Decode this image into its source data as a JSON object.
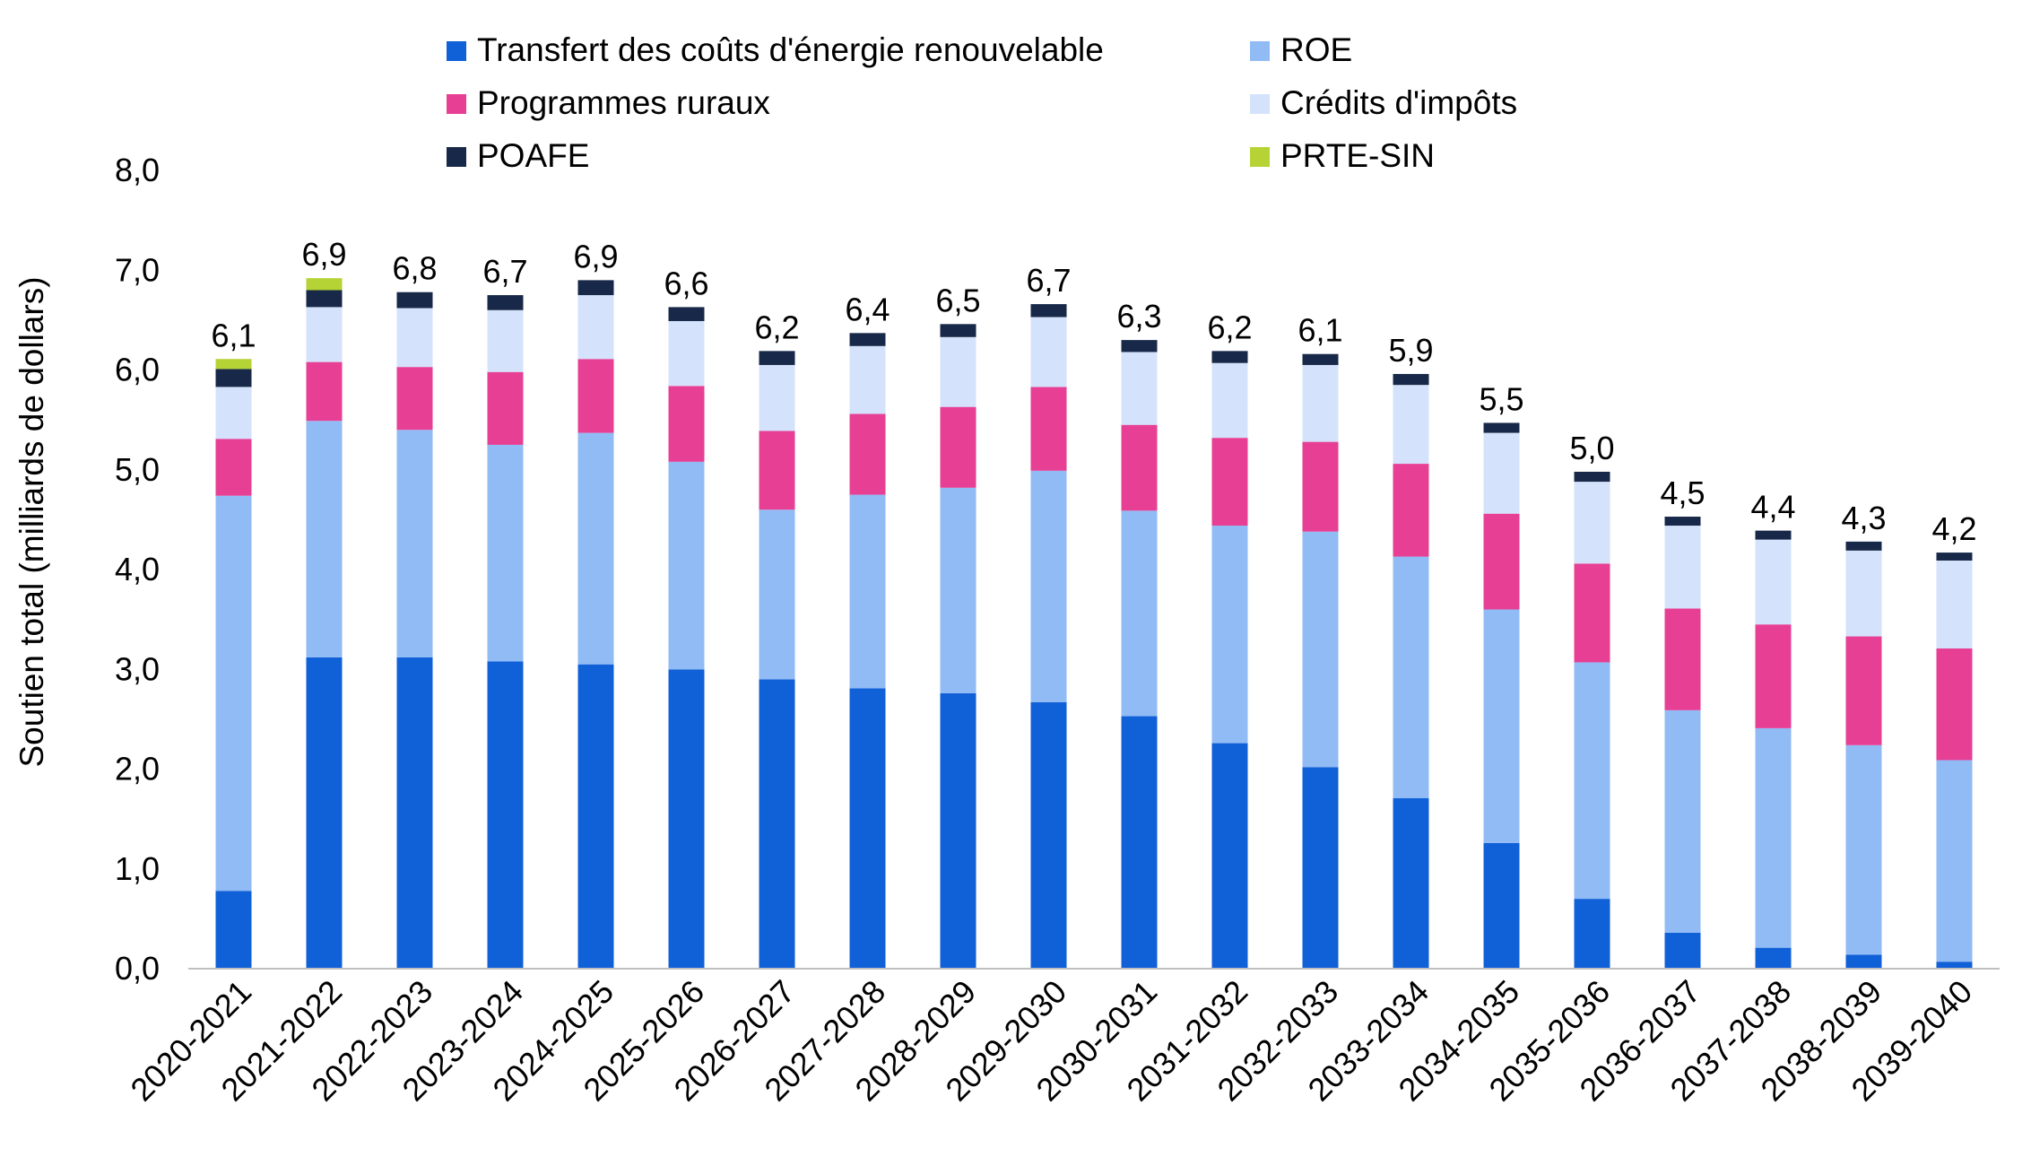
{
  "chart_data": {
    "type": "bar",
    "stacked": true,
    "ylabel": "Soutien total (milliards de dollars)",
    "ylim": [
      0,
      8
    ],
    "yticks": [
      0,
      1,
      2,
      3,
      4,
      5,
      6,
      7,
      8
    ],
    "ytick_labels": [
      "0,0",
      "1,0",
      "2,0",
      "3,0",
      "4,0",
      "5,0",
      "6,0",
      "7,0",
      "8,0"
    ],
    "grid": false,
    "legend_position": "top",
    "categories": [
      "2020-2021",
      "2021-2022",
      "2022-2023",
      "2023-2024",
      "2024-2025",
      "2025-2026",
      "2026-2027",
      "2027-2028",
      "2028-2029",
      "2029-2030",
      "2030-2031",
      "2031-2032",
      "2032-2033",
      "2033-2034",
      "2034-2035",
      "2035-2036",
      "2036-2037",
      "2037-2038",
      "2038-2039",
      "2039-2040"
    ],
    "series": [
      {
        "name": "Transfert des coûts d'énergie renouvelable",
        "color": "#1060d8",
        "values": [
          0.78,
          3.12,
          3.12,
          3.08,
          3.05,
          3.0,
          2.9,
          2.81,
          2.76,
          2.67,
          2.53,
          2.26,
          2.02,
          1.71,
          1.26,
          0.7,
          0.36,
          0.21,
          0.14,
          0.07
        ]
      },
      {
        "name": "ROE",
        "color": "#91bbf5",
        "values": [
          3.96,
          2.37,
          2.28,
          2.17,
          2.32,
          2.08,
          1.7,
          1.94,
          2.06,
          2.32,
          2.06,
          2.18,
          2.36,
          2.42,
          2.34,
          2.37,
          2.23,
          2.2,
          2.1,
          2.02
        ]
      },
      {
        "name": "Programmes ruraux",
        "color": "#e63f94",
        "values": [
          0.57,
          0.59,
          0.63,
          0.73,
          0.74,
          0.76,
          0.79,
          0.81,
          0.81,
          0.84,
          0.86,
          0.88,
          0.9,
          0.93,
          0.96,
          0.99,
          1.02,
          1.04,
          1.09,
          1.12
        ]
      },
      {
        "name": "Crédits d'impôts",
        "color": "#d4e3fb",
        "values": [
          0.52,
          0.55,
          0.59,
          0.62,
          0.64,
          0.65,
          0.66,
          0.68,
          0.7,
          0.7,
          0.73,
          0.75,
          0.77,
          0.79,
          0.81,
          0.82,
          0.83,
          0.85,
          0.86,
          0.88
        ]
      },
      {
        "name": "POAFE",
        "color": "#182848",
        "values": [
          0.18,
          0.17,
          0.16,
          0.15,
          0.15,
          0.14,
          0.14,
          0.13,
          0.13,
          0.13,
          0.12,
          0.12,
          0.11,
          0.11,
          0.1,
          0.1,
          0.09,
          0.09,
          0.09,
          0.08
        ]
      },
      {
        "name": "PRTE-SIN",
        "color": "#b5d334",
        "values": [
          0.1,
          0.12,
          0,
          0,
          0,
          0,
          0,
          0,
          0,
          0,
          0,
          0,
          0,
          0,
          0,
          0,
          0,
          0,
          0,
          0
        ]
      }
    ],
    "total_labels": [
      "6,1",
      "6,9",
      "6,8",
      "6,7",
      "6,9",
      "6,6",
      "6,2",
      "6,4",
      "6,5",
      "6,7",
      "6,3",
      "6,2",
      "6,1",
      "5,9",
      "5,5",
      "5,0",
      "4,5",
      "4,4",
      "4,3",
      "4,2"
    ]
  }
}
